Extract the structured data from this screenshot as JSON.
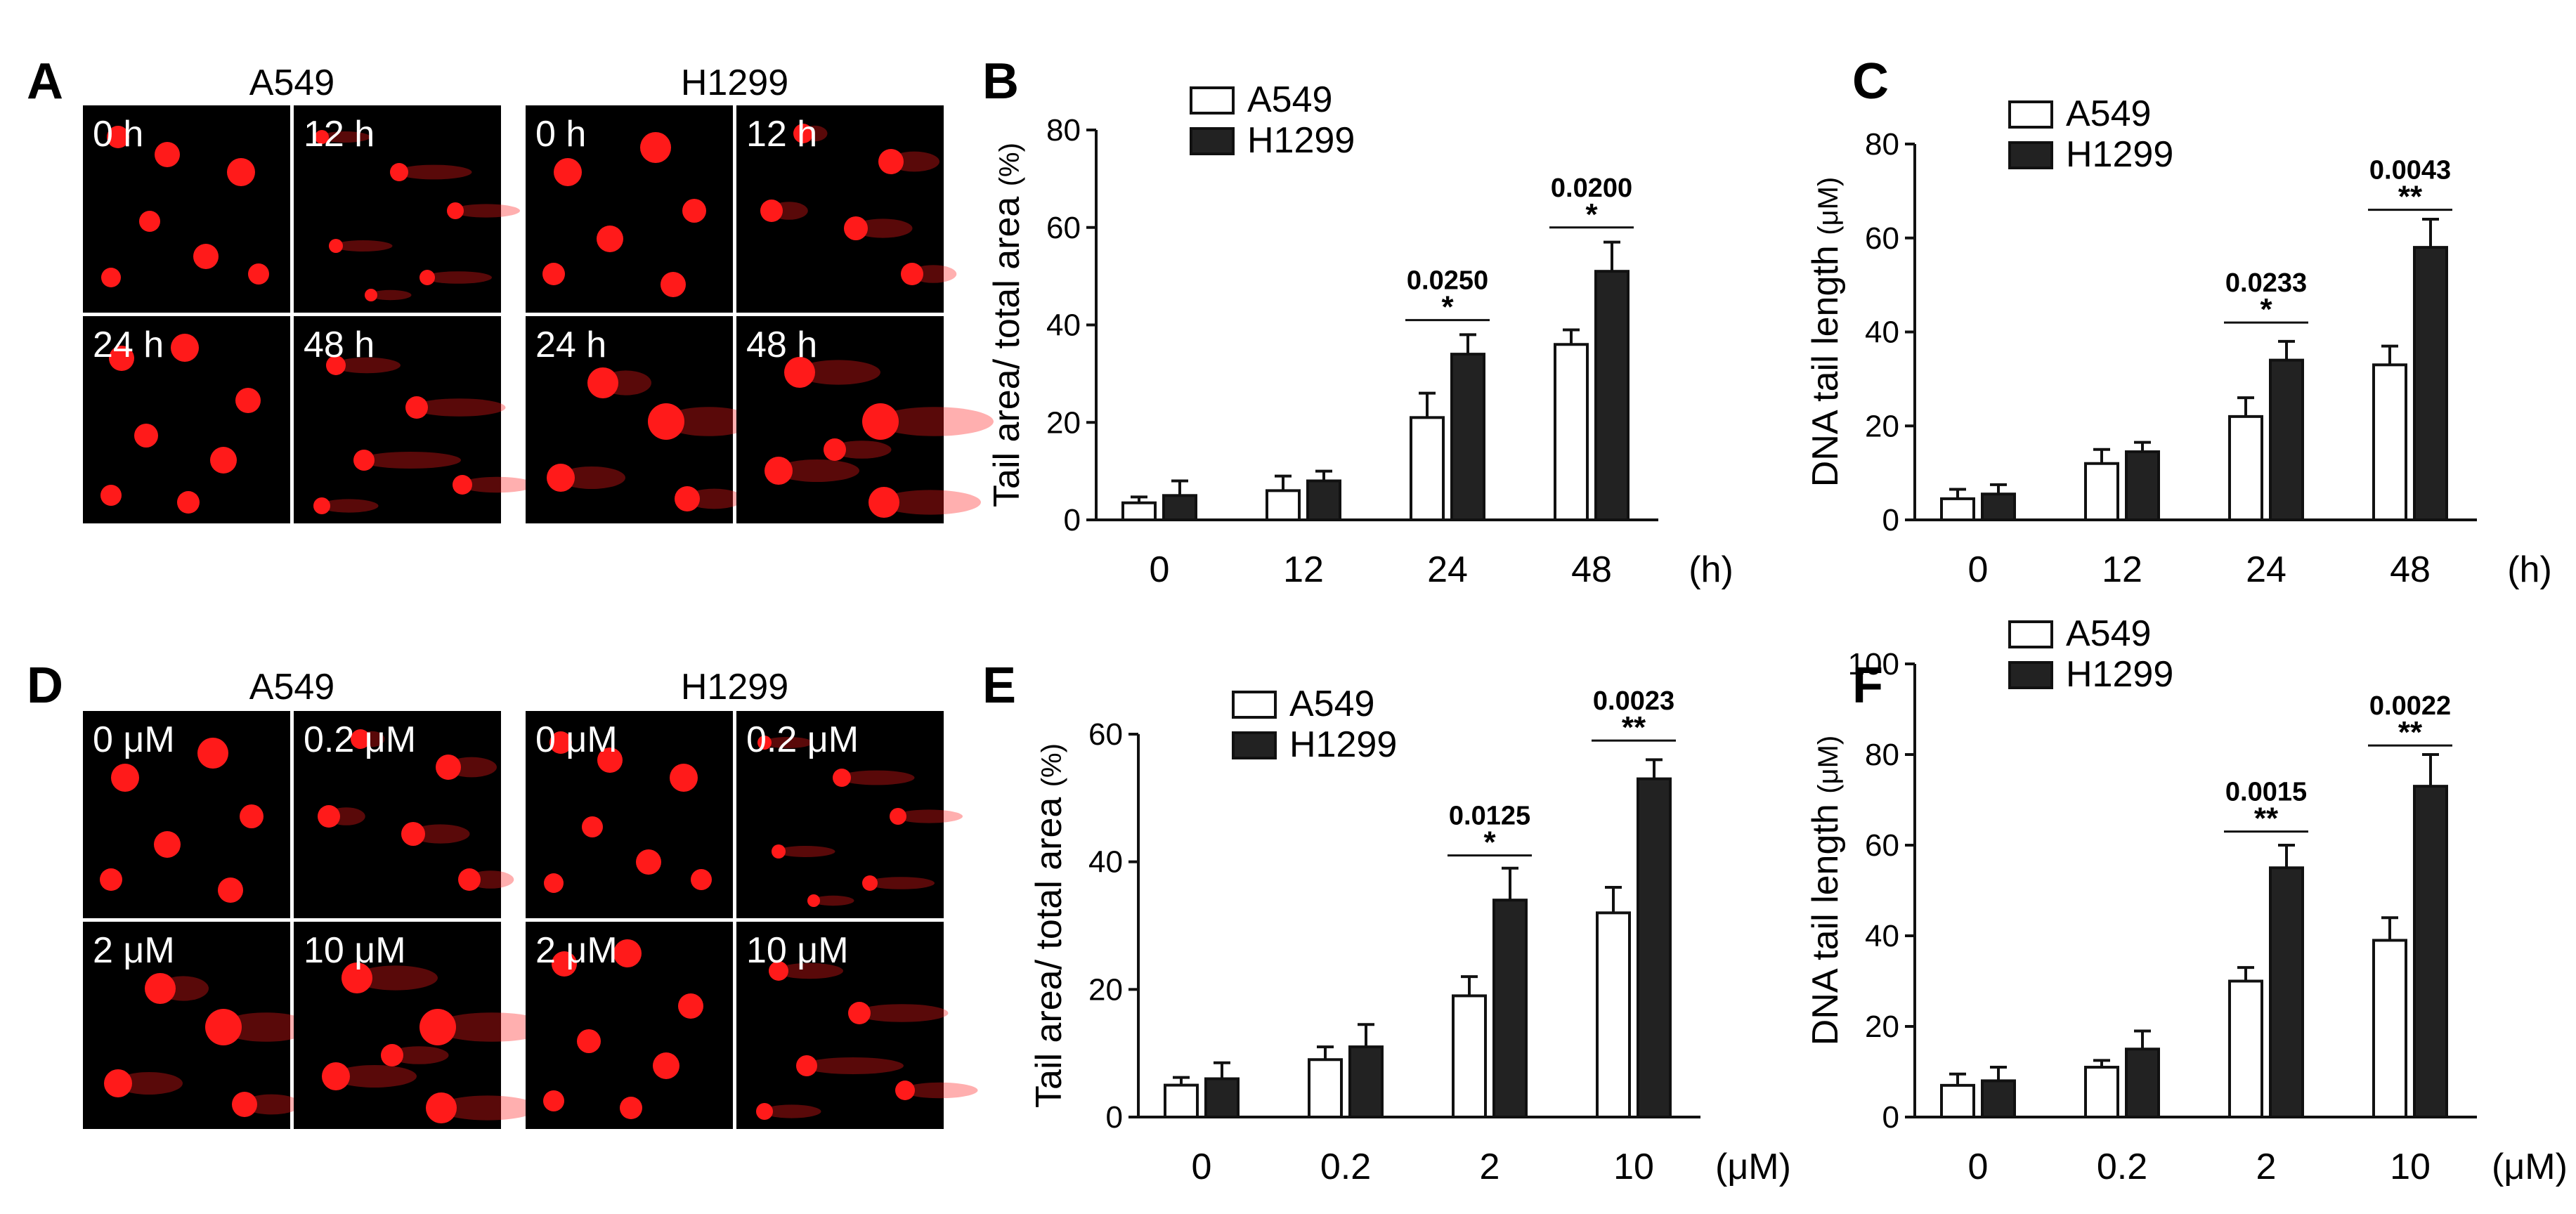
{
  "panel_letters": {
    "A": "A",
    "B": "B",
    "C": "C",
    "D": "D",
    "E": "E",
    "F": "F"
  },
  "image_panels": [
    {
      "letter": "A",
      "cell_lines": [
        "A549",
        "H1299"
      ],
      "labels": {
        "A549": [
          "0 h",
          "12 h",
          "24 h",
          "48 h"
        ],
        "H1299": [
          "0 h",
          "12 h",
          "24 h",
          "48 h"
        ]
      }
    },
    {
      "letter": "D",
      "cell_lines": [
        "A549",
        "H1299"
      ],
      "labels": {
        "A549": [
          "0 μM",
          "0.2 μM",
          "2 μM",
          "10 μM"
        ],
        "H1299": [
          "0 μM",
          "0.2 μM",
          "2 μM",
          "10 μM"
        ]
      }
    }
  ],
  "colors": {
    "a549_fill": "#ffffff",
    "h1299_fill": "#222222",
    "comet": "#ff1a1a",
    "image_bg": "#000000"
  },
  "chart_data": [
    {
      "panel": "B",
      "type": "bar",
      "ylabel_main": "Tail area/ total area",
      "ylabel_unit": "(%)",
      "categories": [
        "0",
        "12",
        "24",
        "48"
      ],
      "x_unit": "(h)",
      "ylim": [
        0,
        80
      ],
      "yticks": [
        "0",
        "20",
        "40",
        "60",
        "80"
      ],
      "legend": [
        "A549",
        "H1299"
      ],
      "series": [
        {
          "name": "A549",
          "values": [
            3.5,
            6,
            21,
            36
          ],
          "errors": [
            1.2,
            3,
            5,
            3
          ]
        },
        {
          "name": "H1299",
          "values": [
            5,
            8,
            34,
            51
          ],
          "errors": [
            3,
            2,
            4,
            6
          ]
        }
      ],
      "annotations": [
        {
          "category": "24",
          "pvalue": "0.0250",
          "stars": "*",
          "y": 41
        },
        {
          "category": "48",
          "pvalue": "0.0200",
          "stars": "*",
          "y": 60
        }
      ]
    },
    {
      "panel": "C",
      "type": "bar",
      "ylabel_main": "DNA tail length",
      "ylabel_unit": "(μM)",
      "categories": [
        "0",
        "12",
        "24",
        "48"
      ],
      "x_unit": "(h)",
      "ylim": [
        0,
        80
      ],
      "yticks": [
        "0",
        "20",
        "40",
        "60",
        "80"
      ],
      "legend": [
        "A549",
        "H1299"
      ],
      "series": [
        {
          "name": "A549",
          "values": [
            4.5,
            12,
            22,
            33
          ],
          "errors": [
            2,
            3,
            4,
            4
          ]
        },
        {
          "name": "H1299",
          "values": [
            5.5,
            14.5,
            34,
            58
          ],
          "errors": [
            2,
            2,
            4,
            6
          ]
        }
      ],
      "annotations": [
        {
          "category": "24",
          "pvalue": "0.0233",
          "stars": "*",
          "y": 42
        },
        {
          "category": "48",
          "pvalue": "0.0043",
          "stars": "**",
          "y": 66
        }
      ]
    },
    {
      "panel": "E",
      "type": "bar",
      "ylabel_main": "Tail area/ total area",
      "ylabel_unit": "(%)",
      "categories": [
        "0",
        "0.2",
        "2",
        "10"
      ],
      "x_unit": "(μM)",
      "ylim": [
        0,
        60
      ],
      "yticks": [
        "0",
        "20",
        "40",
        "60"
      ],
      "legend": [
        "A549",
        "H1299"
      ],
      "series": [
        {
          "name": "A549",
          "values": [
            5,
            9,
            19,
            32
          ],
          "errors": [
            1.2,
            2,
            3,
            4
          ]
        },
        {
          "name": "H1299",
          "values": [
            6,
            11,
            34,
            53
          ],
          "errors": [
            2.5,
            3.5,
            5,
            3
          ]
        }
      ],
      "annotations": [
        {
          "category": "2",
          "pvalue": "0.0125",
          "stars": "*",
          "y": 41
        },
        {
          "category": "10",
          "pvalue": "0.0023",
          "stars": "**",
          "y": 59
        }
      ]
    },
    {
      "panel": "F",
      "type": "bar",
      "ylabel_main": "DNA tail length",
      "ylabel_unit": "(μM)",
      "categories": [
        "0",
        "0.2",
        "2",
        "10"
      ],
      "x_unit": "(μM)",
      "ylim": [
        0,
        100
      ],
      "yticks": [
        "0",
        "20",
        "40",
        "60",
        "80",
        "100"
      ],
      "legend": [
        "A549",
        "H1299"
      ],
      "series": [
        {
          "name": "A549",
          "values": [
            7,
            11,
            30,
            39
          ],
          "errors": [
            2.5,
            1.5,
            3,
            5
          ]
        },
        {
          "name": "H1299",
          "values": [
            8,
            15,
            55,
            73
          ],
          "errors": [
            3,
            4,
            5,
            7
          ]
        }
      ],
      "annotations": [
        {
          "category": "2",
          "pvalue": "0.0015",
          "stars": "**",
          "y": 63
        },
        {
          "category": "10",
          "pvalue": "0.0022",
          "stars": "**",
          "y": 82
        }
      ]
    }
  ]
}
